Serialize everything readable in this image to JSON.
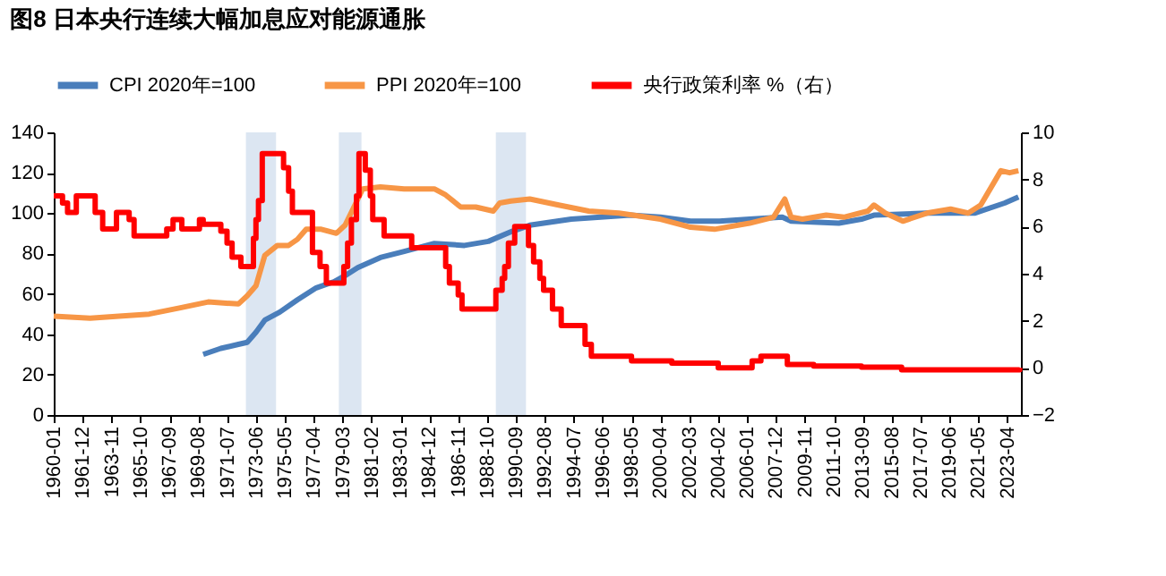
{
  "chart_data": {
    "type": "line",
    "title": "图8  日本央行连续大幅加息应对能源通胀",
    "xlim": [
      "1960-01",
      "2024-03"
    ],
    "xticks": [
      "1960-01",
      "1961-12",
      "1963-11",
      "1965-10",
      "1967-09",
      "1969-08",
      "1971-07",
      "1973-06",
      "1975-05",
      "1977-04",
      "1979-03",
      "1981-02",
      "1983-01",
      "1984-12",
      "1986-11",
      "1988-10",
      "1990-09",
      "1992-08",
      "1994-07",
      "1996-06",
      "1998-05",
      "2000-04",
      "2002-03",
      "2004-02",
      "2006-01",
      "2007-12",
      "2009-11",
      "2011-10",
      "2013-09",
      "2015-08",
      "2017-07",
      "2019-06",
      "2021-05",
      "2023-04"
    ],
    "ylim": [
      0,
      140
    ],
    "yticks": [
      0,
      20,
      40,
      60,
      80,
      100,
      120,
      140
    ],
    "y2lim": [
      -2,
      10
    ],
    "y2ticks": [
      -2,
      0,
      2,
      4,
      6,
      8,
      10
    ],
    "legend": "top",
    "grid": false,
    "marker": "none",
    "line_style": "solid",
    "bands": [
      {
        "axis": "x",
        "from": "1972-10",
        "to": "1974-10",
        "color": "#dce6f2"
      },
      {
        "axis": "x",
        "from": "1978-12",
        "to": "1980-06",
        "color": "#dce6f2"
      },
      {
        "axis": "x",
        "from": "1989-05",
        "to": "1991-05",
        "color": "#dce6f2"
      }
    ],
    "series": [
      {
        "name": "CPI 2020年=100",
        "color": "#4a7ebb",
        "x": [
          "1969-12",
          "1971-02",
          "1972-04",
          "1972-11",
          "1973-06",
          "1974-01",
          "1975-01",
          "1976-03",
          "1977-06",
          "1978-08",
          "1979-05",
          "1980-03",
          "1981-09",
          "1983-04",
          "1985-04",
          "1987-04",
          "1988-11",
          "1990-06",
          "1991-08",
          "1994-05",
          "1998-04",
          "2000-04",
          "2002-04",
          "2004-03",
          "2006-03",
          "2008-05",
          "2008-12",
          "2012-02",
          "2013-08",
          "2014-06",
          "2017-12",
          "2021-02",
          "2023-02",
          "2024-01"
        ],
        "values": [
          30,
          33,
          35,
          36,
          41,
          47,
          51,
          57,
          63,
          66,
          69,
          73,
          78,
          81,
          85,
          84,
          86,
          91,
          94,
          97,
          99,
          98,
          96,
          96,
          97,
          98,
          96,
          95,
          97,
          99,
          100,
          100,
          105,
          108
        ]
      },
      {
        "name": "PPI 2020年=100",
        "color": "#f79646",
        "x": [
          "1960-01",
          "1962-06",
          "1964-05",
          "1966-05",
          "1968-05",
          "1970-04",
          "1972-04",
          "1972-11",
          "1973-06",
          "1974-01",
          "1974-11",
          "1975-08",
          "1976-03",
          "1976-10",
          "1977-10",
          "1978-10",
          "1979-05",
          "1979-12",
          "1980-07",
          "1981-09",
          "1983-04",
          "1985-04",
          "1986-01",
          "1987-01",
          "1988-01",
          "1989-03",
          "1989-08",
          "1990-05",
          "1991-08",
          "1993-07",
          "1995-07",
          "1997-07",
          "2000-04",
          "2002-04",
          "2003-11",
          "2006-03",
          "2007-10",
          "2008-07",
          "2008-12",
          "2009-09",
          "2011-04",
          "2012-06",
          "2014-01",
          "2014-06",
          "2015-03",
          "2016-05",
          "2017-12",
          "2019-07",
          "2020-09",
          "2021-07",
          "2022-11",
          "2023-06",
          "2024-01"
        ],
        "values": [
          49,
          48,
          49,
          50,
          53,
          56,
          55,
          59,
          64,
          79,
          84,
          84,
          87,
          92,
          92,
          90,
          94,
          103,
          112,
          113,
          112,
          112,
          109,
          103,
          103,
          101,
          105,
          106,
          107,
          104,
          101,
          100,
          97,
          93,
          92,
          95,
          98,
          107,
          98,
          97,
          99,
          98,
          101,
          104,
          100,
          96,
          100,
          102,
          100,
          104,
          121,
          120,
          121
        ]
      },
      {
        "name": "央行政策利率 %（右）",
        "color": "#ff0000",
        "type": "step",
        "axis": "y2",
        "x": [
          "1960-01",
          "1960-08",
          "1960-12",
          "1961-07",
          "1962-10",
          "1963-04",
          "1964-03",
          "1965-01",
          "1965-05",
          "1967-07",
          "1967-12",
          "1968-07",
          "1969-09",
          "1969-12",
          "1971-02",
          "1971-07",
          "1971-11",
          "1972-06",
          "1973-04",
          "1973-06",
          "1973-08",
          "1973-11",
          "1975-04",
          "1975-08",
          "1975-11",
          "1977-03",
          "1977-09",
          "1978-02",
          "1979-04",
          "1979-07",
          "1979-10",
          "1980-02",
          "1980-04",
          "1980-09",
          "1981-01",
          "1981-03",
          "1981-12",
          "1983-10",
          "1986-01",
          "1986-04",
          "1986-11",
          "1987-02",
          "1989-05",
          "1989-10",
          "1989-12",
          "1990-03",
          "1990-08",
          "1991-07",
          "1991-11",
          "1992-04",
          "1992-07",
          "1993-02",
          "1993-09",
          "1995-04",
          "1995-09",
          "1998-05",
          "2001-01",
          "2004-02",
          "2006-05",
          "2006-12",
          "2008-09",
          "2010-06",
          "2013-08",
          "2016-04",
          "2024-02"
        ],
        "values": [
          7.3,
          7.0,
          6.6,
          7.3,
          6.6,
          5.9,
          6.6,
          6.3,
          5.6,
          5.9,
          6.3,
          5.9,
          6.3,
          6.1,
          5.8,
          5.3,
          4.7,
          4.3,
          5.5,
          6.3,
          7.1,
          9.1,
          8.5,
          7.5,
          6.6,
          4.9,
          4.3,
          3.6,
          4.3,
          5.3,
          6.3,
          7.3,
          9.1,
          8.4,
          7.3,
          6.3,
          5.6,
          5.1,
          4.3,
          3.6,
          3.1,
          2.5,
          3.3,
          3.8,
          4.3,
          5.3,
          6.0,
          5.2,
          4.5,
          3.8,
          3.3,
          2.5,
          1.8,
          1.0,
          0.5,
          0.3,
          0.2,
          0.0,
          0.3,
          0.5,
          0.15,
          0.08,
          0.03,
          -0.08,
          0.0
        ]
      }
    ]
  }
}
